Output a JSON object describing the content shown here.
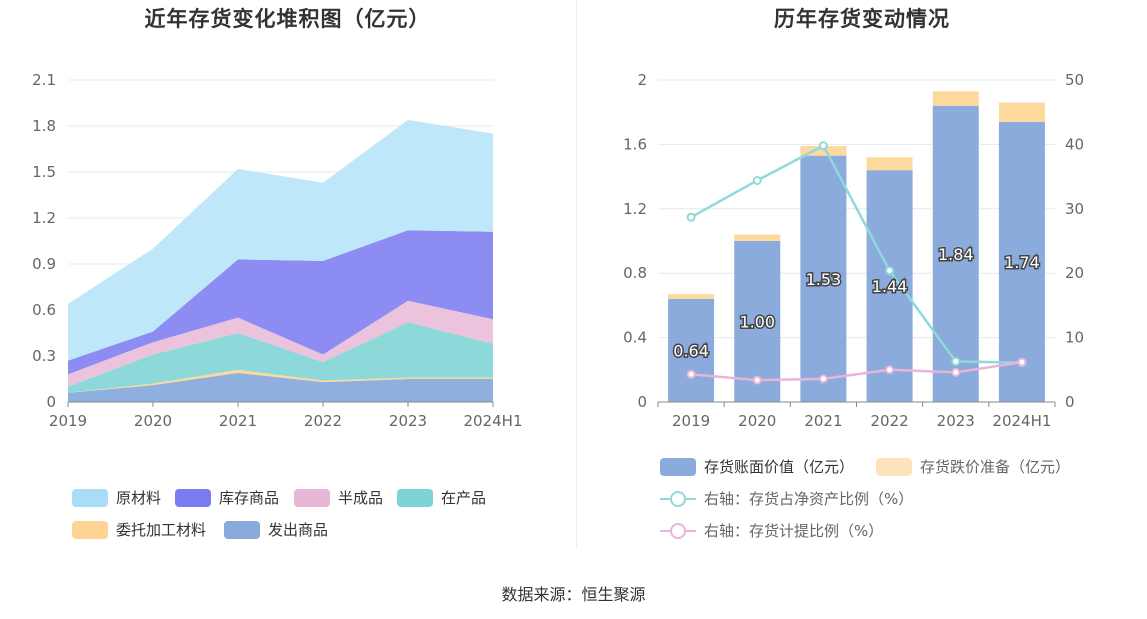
{
  "left_chart": {
    "title": "近年存货变化堆积图（亿元）",
    "chart_data": {
      "type": "area",
      "stacked": true,
      "categories": [
        "2019",
        "2020",
        "2021",
        "2022",
        "2023",
        "2024H1"
      ],
      "ylim": [
        0,
        2.1
      ],
      "yticks": [
        "0",
        "0.3",
        "0.6",
        "0.9",
        "1.2",
        "1.5",
        "1.8",
        "2.1"
      ],
      "series": [
        {
          "name": "发出商品",
          "color": "#8fb0de",
          "values": [
            0.06,
            0.11,
            0.19,
            0.13,
            0.15,
            0.15
          ]
        },
        {
          "name": "委托加工材料",
          "color": "#fdd89b",
          "values": [
            0.0,
            0.01,
            0.02,
            0.01,
            0.01,
            0.01
          ]
        },
        {
          "name": "在产品",
          "color": "#8dd8d9",
          "values": [
            0.04,
            0.19,
            0.24,
            0.12,
            0.36,
            0.22
          ]
        },
        {
          "name": "半成品",
          "color": "#ecc3dd",
          "values": [
            0.08,
            0.08,
            0.1,
            0.05,
            0.14,
            0.16
          ]
        },
        {
          "name": "库存商品",
          "color": "#8c8cf3",
          "values": [
            0.09,
            0.07,
            0.38,
            0.61,
            0.46,
            0.57
          ]
        },
        {
          "name": "原材料",
          "color": "#bfe7fa",
          "values": [
            0.37,
            0.54,
            0.59,
            0.51,
            0.72,
            0.64
          ]
        }
      ]
    },
    "legend": [
      {
        "label": "原材料",
        "color": "#a8dcf7"
      },
      {
        "label": "库存商品",
        "color": "#7b7bf0"
      },
      {
        "label": "半成品",
        "color": "#e8b7d8"
      },
      {
        "label": "在产品",
        "color": "#7fd3d5"
      },
      {
        "label": "委托加工材料",
        "color": "#fdd493"
      },
      {
        "label": "发出商品",
        "color": "#8aaadc"
      }
    ]
  },
  "right_chart": {
    "title": "历年存货变动情况",
    "chart_data": {
      "type": "bar",
      "stacked": true,
      "categories": [
        "2019",
        "2020",
        "2021",
        "2022",
        "2023",
        "2024H1"
      ],
      "ylim_left": [
        0,
        2
      ],
      "yticks_left": [
        "0",
        "0.4",
        "0.8",
        "1.2",
        "1.6",
        "2"
      ],
      "ylim_right": [
        0,
        50
      ],
      "yticks_right": [
        "0",
        "10",
        "20",
        "30",
        "40",
        "50"
      ],
      "series": [
        {
          "name": "存货账面价值（亿元）",
          "color": "#8aabdb",
          "values": [
            0.64,
            1.0,
            1.53,
            1.44,
            1.84,
            1.74
          ],
          "labels": [
            "0.64",
            "1.00",
            "1.53",
            "1.44",
            "1.84",
            "1.74"
          ]
        },
        {
          "name": "存货跌价准备（亿元）",
          "color": "#fdd99e",
          "values": [
            0.03,
            0.04,
            0.06,
            0.08,
            0.09,
            0.12
          ]
        }
      ],
      "lines": [
        {
          "name": "右轴：存货占净资产比例（%）",
          "color": "#8fd9d9",
          "axis": "right",
          "values": [
            28.7,
            34.4,
            39.8,
            20.4,
            6.3,
            6.1
          ]
        },
        {
          "name": "右轴：存货计提比例（%）",
          "color": "#ebb3d9",
          "axis": "right",
          "values": [
            4.3,
            3.4,
            3.6,
            5.0,
            4.6,
            6.2
          ]
        }
      ]
    },
    "legend": [
      {
        "label": "存货账面价值（亿元）",
        "type": "bar",
        "color": "#8aabdb",
        "muted": false
      },
      {
        "label": "存货跌价准备（亿元）",
        "type": "bar",
        "color": "#fde3bd",
        "muted": true
      },
      {
        "label": "右轴：存货占净资产比例（%）",
        "type": "line",
        "color": "#8fd9d9",
        "muted": true
      },
      {
        "label": "右轴：存货计提比例（%）",
        "type": "line",
        "color": "#ebb3d9",
        "muted": true
      }
    ]
  },
  "footer": {
    "source": "数据来源：恒生聚源"
  }
}
